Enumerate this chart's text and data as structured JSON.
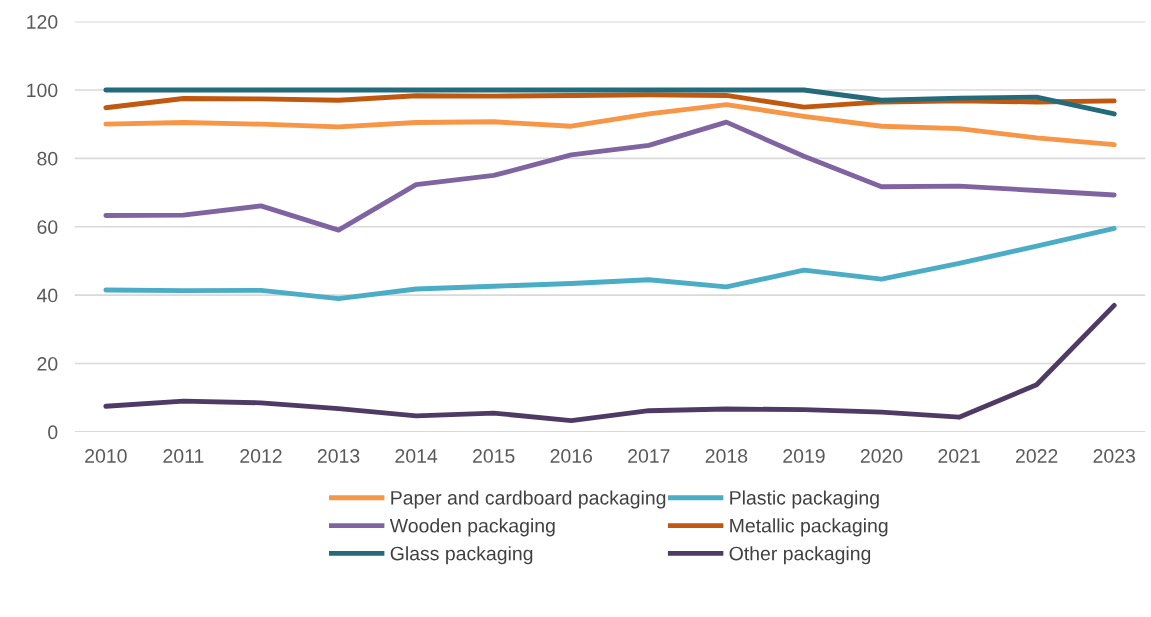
{
  "chart_data": {
    "type": "line",
    "x": [
      2010,
      2011,
      2012,
      2013,
      2014,
      2015,
      2016,
      2017,
      2018,
      2019,
      2020,
      2021,
      2022,
      2023
    ],
    "xlim": [
      2009.6,
      2023.4
    ],
    "xticks": [
      2010,
      2011,
      2012,
      2013,
      2014,
      2015,
      2016,
      2017,
      2018,
      2019,
      2020,
      2021,
      2022,
      2023
    ],
    "ylim": [
      0,
      120
    ],
    "yticks": [
      0,
      20,
      40,
      60,
      80,
      100,
      120
    ],
    "grid": "y",
    "legend": "bottom",
    "marker": "none",
    "line_style": "solid",
    "series": [
      {
        "name": "Paper and cardboard packaging",
        "color": "#f79646",
        "values": [
          90,
          90.5,
          90,
          89.2,
          90.5,
          90.7,
          89.4,
          93,
          95.7,
          92.3,
          89.4,
          88.7,
          86,
          84
        ]
      },
      {
        "name": "Plastic packaging",
        "color": "#4bacc6",
        "values": [
          41.5,
          41.3,
          41.4,
          39,
          41.8,
          42.6,
          43.4,
          44.5,
          42.4,
          47.3,
          44.7,
          49.3,
          54.3,
          59.5
        ]
      },
      {
        "name": "Wooden packaging",
        "color": "#8064a2",
        "values": [
          63.3,
          63.4,
          66.1,
          59,
          72.3,
          75,
          81,
          83.8,
          90.6,
          80.6,
          71.7,
          71.9,
          70.6,
          69.3
        ]
      },
      {
        "name": "Metallic packaging",
        "color": "#c0580f",
        "values": [
          94.8,
          97.5,
          97.4,
          97,
          98.3,
          98.2,
          98.4,
          98.6,
          98.4,
          95,
          96.5,
          96.8,
          96.5,
          96.8
        ]
      },
      {
        "name": "Glass packaging",
        "color": "#236b7a",
        "values": [
          100,
          100,
          100,
          100,
          100,
          100,
          100,
          100,
          100,
          100,
          97,
          97.6,
          97.9,
          93
        ]
      },
      {
        "name": "Other packaging",
        "color": "#4f3a66",
        "values": [
          7.5,
          9,
          8.5,
          6.8,
          4.7,
          5.5,
          3.3,
          6.2,
          6.7,
          6.5,
          5.8,
          4.3,
          13.8,
          37
        ]
      }
    ]
  }
}
